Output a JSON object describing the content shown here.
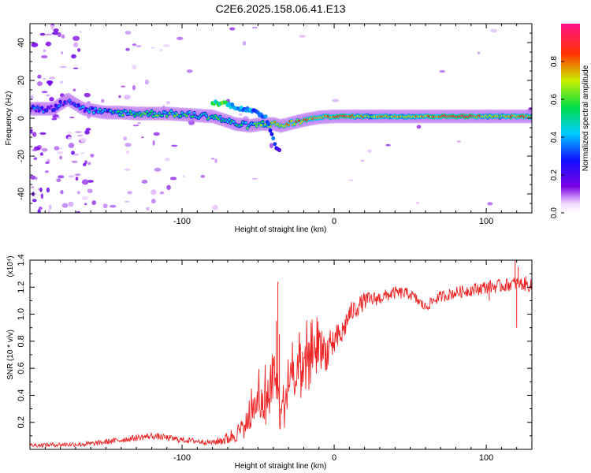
{
  "title": "C2E6.2025.158.06.41.E13",
  "colors": {
    "snr_line": "#ee2222",
    "background": "#ffffff",
    "axis": "#000000"
  },
  "chart_data": [
    {
      "type": "heatmap",
      "name": "spectrogram",
      "xlabel": "Height of straight line (km)",
      "ylabel": "Frequency (Hz)",
      "xlim": [
        -200,
        130
      ],
      "ylim": [
        -50,
        50
      ],
      "x_ticks": [
        -100,
        0,
        100
      ],
      "x_tick_labels": [
        "-100",
        "0",
        "100"
      ],
      "y_ticks": [
        -40,
        -20,
        0,
        20,
        40
      ],
      "y_tick_labels": [
        "-40",
        "-20",
        "0",
        "20",
        "40"
      ],
      "grid": false,
      "colorbar": {
        "label": "Normalized spectral amplitude",
        "range": [
          0,
          1
        ],
        "ticks": [
          0,
          0.2,
          0.4,
          0.6,
          0.8
        ],
        "tick_labels": [
          "0.0",
          "0.2",
          "0.4",
          "0.6",
          "0.8"
        ],
        "colormap": "rainbow (white to purple, blue, cyan, green, yellow, red, pink)"
      },
      "ridge": [
        {
          "x": -185,
          "f": 5,
          "amp": 0.3
        },
        {
          "x": -175,
          "f": 10,
          "amp": 0.25
        },
        {
          "x": -165,
          "f": 5,
          "amp": 0.3
        },
        {
          "x": -150,
          "f": 3,
          "amp": 0.4
        },
        {
          "x": -140,
          "f": 3,
          "amp": 0.5
        },
        {
          "x": -130,
          "f": 2.5,
          "amp": 0.5
        },
        {
          "x": -120,
          "f": 2.5,
          "amp": 0.55
        },
        {
          "x": -110,
          "f": 2.5,
          "amp": 0.5
        },
        {
          "x": -100,
          "f": 2,
          "amp": 0.55
        },
        {
          "x": -90,
          "f": 1.5,
          "amp": 0.5
        },
        {
          "x": -80,
          "f": 1,
          "amp": 0.55
        },
        {
          "x": -72,
          "f": -1,
          "amp": 0.5
        },
        {
          "x": -65,
          "f": -3,
          "amp": 0.45
        },
        {
          "x": -55,
          "f": -4,
          "amp": 0.55
        },
        {
          "x": -48,
          "f": -3,
          "amp": 0.6
        },
        {
          "x": -40,
          "f": -3,
          "amp": 0.65
        },
        {
          "x": -35,
          "f": -4,
          "amp": 0.7
        },
        {
          "x": -30,
          "f": -3,
          "amp": 0.75
        },
        {
          "x": -25,
          "f": -2,
          "amp": 0.75
        },
        {
          "x": -20,
          "f": -1,
          "amp": 0.8
        },
        {
          "x": -10,
          "f": 0.5,
          "amp": 0.7
        },
        {
          "x": 0,
          "f": 1,
          "amp": 0.85
        },
        {
          "x": 5,
          "f": 1,
          "amp": 0.9
        },
        {
          "x": 20,
          "f": 1,
          "amp": 0.7
        },
        {
          "x": 40,
          "f": 1,
          "amp": 0.75
        },
        {
          "x": 60,
          "f": 1,
          "amp": 0.8
        },
        {
          "x": 70,
          "f": 1,
          "amp": 0.85
        },
        {
          "x": 80,
          "f": 1,
          "amp": 0.95
        },
        {
          "x": 90,
          "f": 1,
          "amp": 0.9
        },
        {
          "x": 100,
          "f": 1,
          "amp": 0.75
        },
        {
          "x": 110,
          "f": 1,
          "amp": 0.7
        },
        {
          "x": 118,
          "f": 1,
          "amp": 0.85
        },
        {
          "x": 130,
          "f": 1,
          "amp": 0.7
        }
      ],
      "secondary_branch": [
        {
          "x": -80,
          "f": 8,
          "amp": 0.55
        },
        {
          "x": -72,
          "f": 8,
          "amp": 0.6
        },
        {
          "x": -65,
          "f": 6,
          "amp": 0.45
        },
        {
          "x": -55,
          "f": 4,
          "amp": 0.4
        },
        {
          "x": -45,
          "f": 1,
          "amp": 0.4
        },
        {
          "x": -38,
          "f": -15,
          "amp": 0.3
        },
        {
          "x": -36,
          "f": -17,
          "amp": 0.25
        }
      ]
    },
    {
      "type": "line",
      "name": "snr",
      "xlabel": "Height of straight line (km)",
      "ylabel": "SNR (10 * v/v)",
      "y_multiplier": "(x10⁴)",
      "xlim": [
        -200,
        130
      ],
      "ylim": [
        0,
        1.4
      ],
      "x_ticks": [
        -100,
        0,
        100
      ],
      "x_tick_labels": [
        "-100",
        "0",
        "100"
      ],
      "y_ticks": [
        0.2,
        0.4,
        0.6,
        0.8,
        1.0,
        1.2,
        1.4
      ],
      "y_tick_labels": [
        "0.2",
        "0.4",
        "0.6",
        "0.8",
        "1.0",
        "1.2",
        "1.4"
      ],
      "grid": false,
      "envelope": {
        "x": [
          -200,
          -160,
          -140,
          -120,
          -100,
          -80,
          -70,
          -60,
          -50,
          -45,
          -40,
          -35,
          -30,
          -25,
          -20,
          -15,
          -10,
          -5,
          0,
          5,
          10,
          20,
          30,
          40,
          50,
          55,
          60,
          65,
          70,
          80,
          90,
          100,
          110,
          120,
          130
        ],
        "y": [
          0.03,
          0.04,
          0.07,
          0.1,
          0.07,
          0.05,
          0.08,
          0.15,
          0.35,
          0.3,
          0.55,
          0.25,
          0.45,
          0.5,
          0.55,
          0.65,
          0.75,
          0.72,
          0.8,
          0.85,
          1.0,
          1.1,
          1.12,
          1.16,
          1.15,
          1.1,
          1.05,
          1.1,
          1.13,
          1.16,
          1.18,
          1.2,
          1.21,
          1.23,
          1.21
        ]
      },
      "noise_amp": {
        "x": [
          -200,
          -120,
          -80,
          -60,
          -40,
          -20,
          0,
          10,
          30,
          60,
          100,
          130
        ],
        "y": [
          0.015,
          0.025,
          0.02,
          0.08,
          0.18,
          0.2,
          0.12,
          0.08,
          0.05,
          0.04,
          0.05,
          0.05
        ]
      },
      "spikes": [
        {
          "x": -37,
          "y": 1.24
        },
        {
          "x": -38,
          "y": 0.95
        },
        {
          "x": -36,
          "y": 0.85
        },
        {
          "x": 102,
          "y": 1.1
        },
        {
          "x": 119,
          "y": 1.4
        },
        {
          "x": 120,
          "y": 0.9
        },
        {
          "x": 121,
          "y": 1.35
        },
        {
          "x": 126,
          "y": 1.28
        }
      ]
    }
  ]
}
